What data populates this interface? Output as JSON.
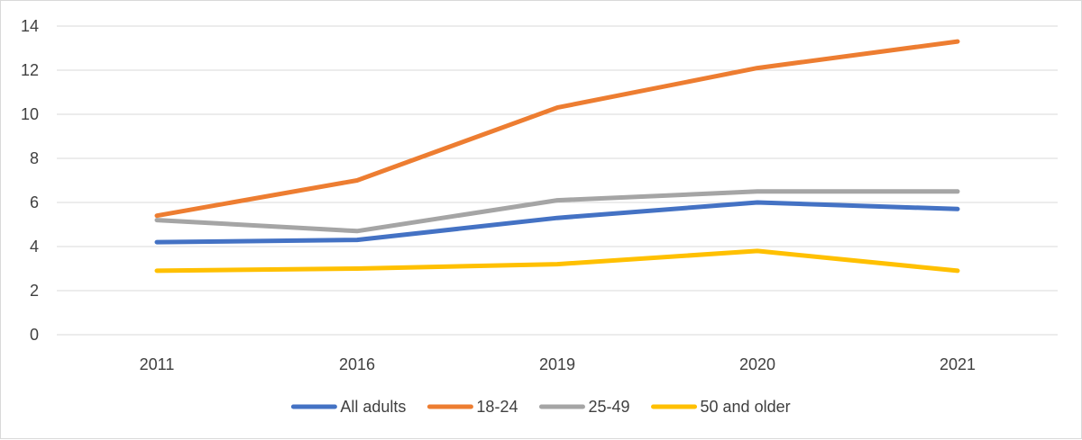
{
  "chart_data": {
    "type": "line",
    "title": "",
    "xlabel": "",
    "ylabel": "",
    "categories": [
      "2011",
      "2016",
      "2019",
      "2020",
      "2021"
    ],
    "ylim": [
      0,
      14
    ],
    "yticks": [
      0,
      2,
      4,
      6,
      8,
      10,
      12,
      14
    ],
    "grid": true,
    "legend_position": "bottom",
    "series": [
      {
        "name": "All adults",
        "color": "#4472c4",
        "values": [
          4.2,
          4.3,
          5.3,
          6.0,
          5.7
        ]
      },
      {
        "name": "18-24",
        "color": "#ed7d31",
        "values": [
          5.4,
          7.0,
          10.3,
          12.1,
          13.3
        ]
      },
      {
        "name": "25-49",
        "color": "#a5a5a5",
        "values": [
          5.2,
          4.7,
          6.1,
          6.5,
          6.5
        ]
      },
      {
        "name": "50 and older",
        "color": "#ffc000",
        "values": [
          2.9,
          3.0,
          3.2,
          3.8,
          2.9
        ]
      }
    ]
  }
}
